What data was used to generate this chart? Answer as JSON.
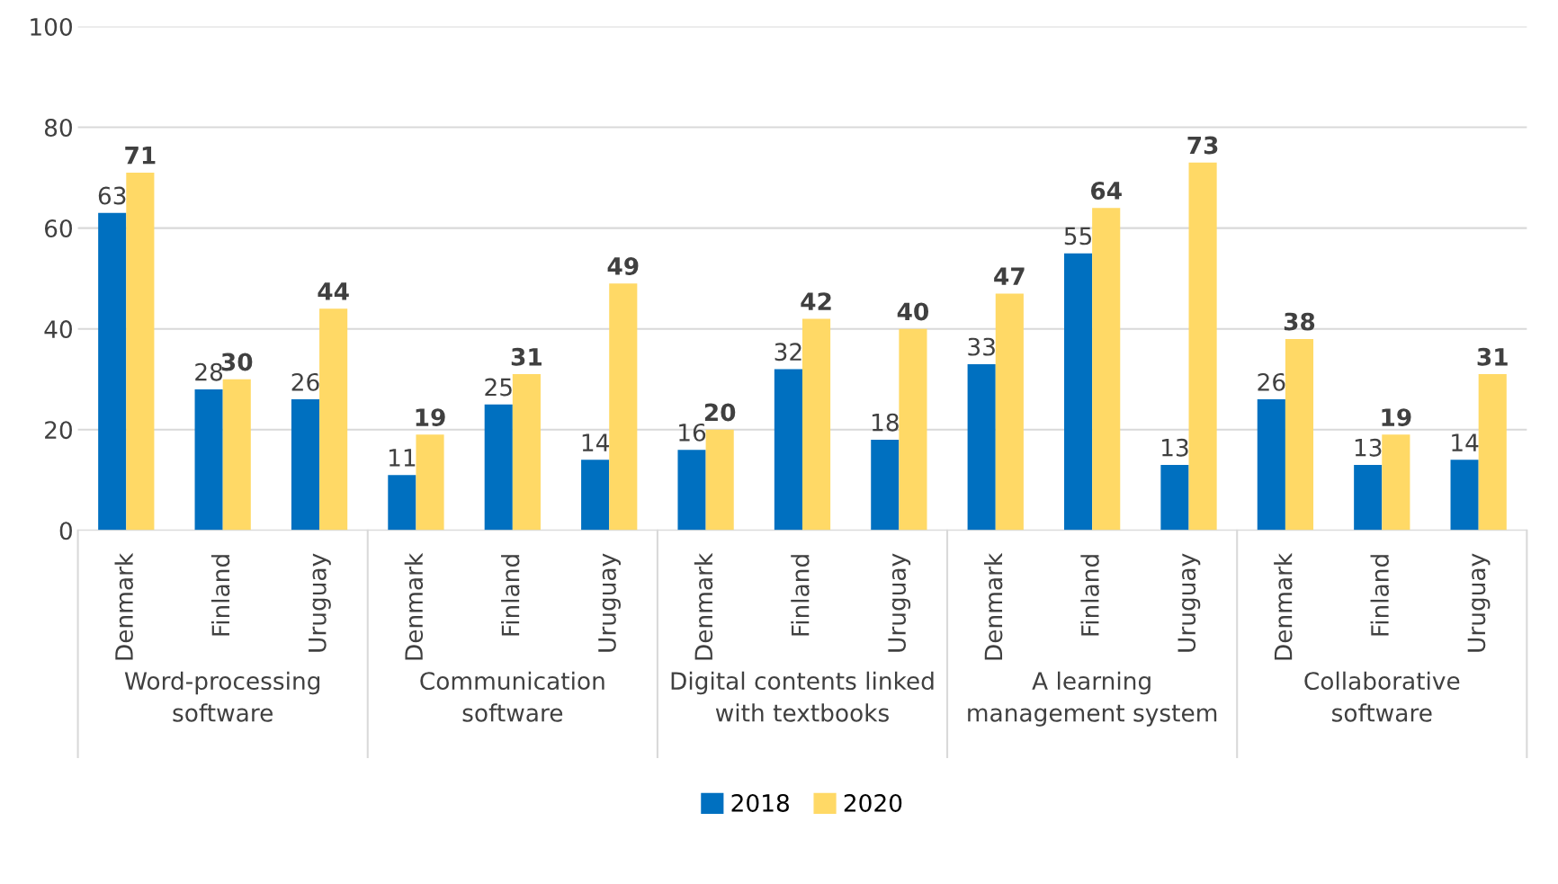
{
  "chart_data": {
    "type": "bar",
    "categories": [
      "Denmark",
      "Finland",
      "Uruguay",
      "Denmark",
      "Finland",
      "Uruguay",
      "Denmark",
      "Finland",
      "Uruguay",
      "Denmark",
      "Finland",
      "Uruguay",
      "Denmark",
      "Finland",
      "Uruguay"
    ],
    "annotations": [
      "Word-processing\nsoftware",
      "Communication\nsoftware",
      "Digital contents linked\nwith textbooks",
      "A learning\nmanagement system",
      "Collaborative\nsoftware"
    ],
    "series": [
      {
        "name": "2018",
        "color": "#0070c0",
        "values": [
          63,
          28,
          26,
          11,
          25,
          14,
          16,
          32,
          18,
          33,
          55,
          13,
          26,
          13,
          14
        ]
      },
      {
        "name": "2020",
        "color": "#ffd966",
        "values": [
          71,
          30,
          44,
          19,
          31,
          49,
          20,
          42,
          40,
          47,
          64,
          73,
          38,
          19,
          31
        ]
      }
    ],
    "ylim": [
      0,
      100
    ],
    "yticks": [
      0,
      20,
      40,
      60,
      80,
      100
    ],
    "grid": "y",
    "legend": "bottom",
    "data_labels": true
  }
}
